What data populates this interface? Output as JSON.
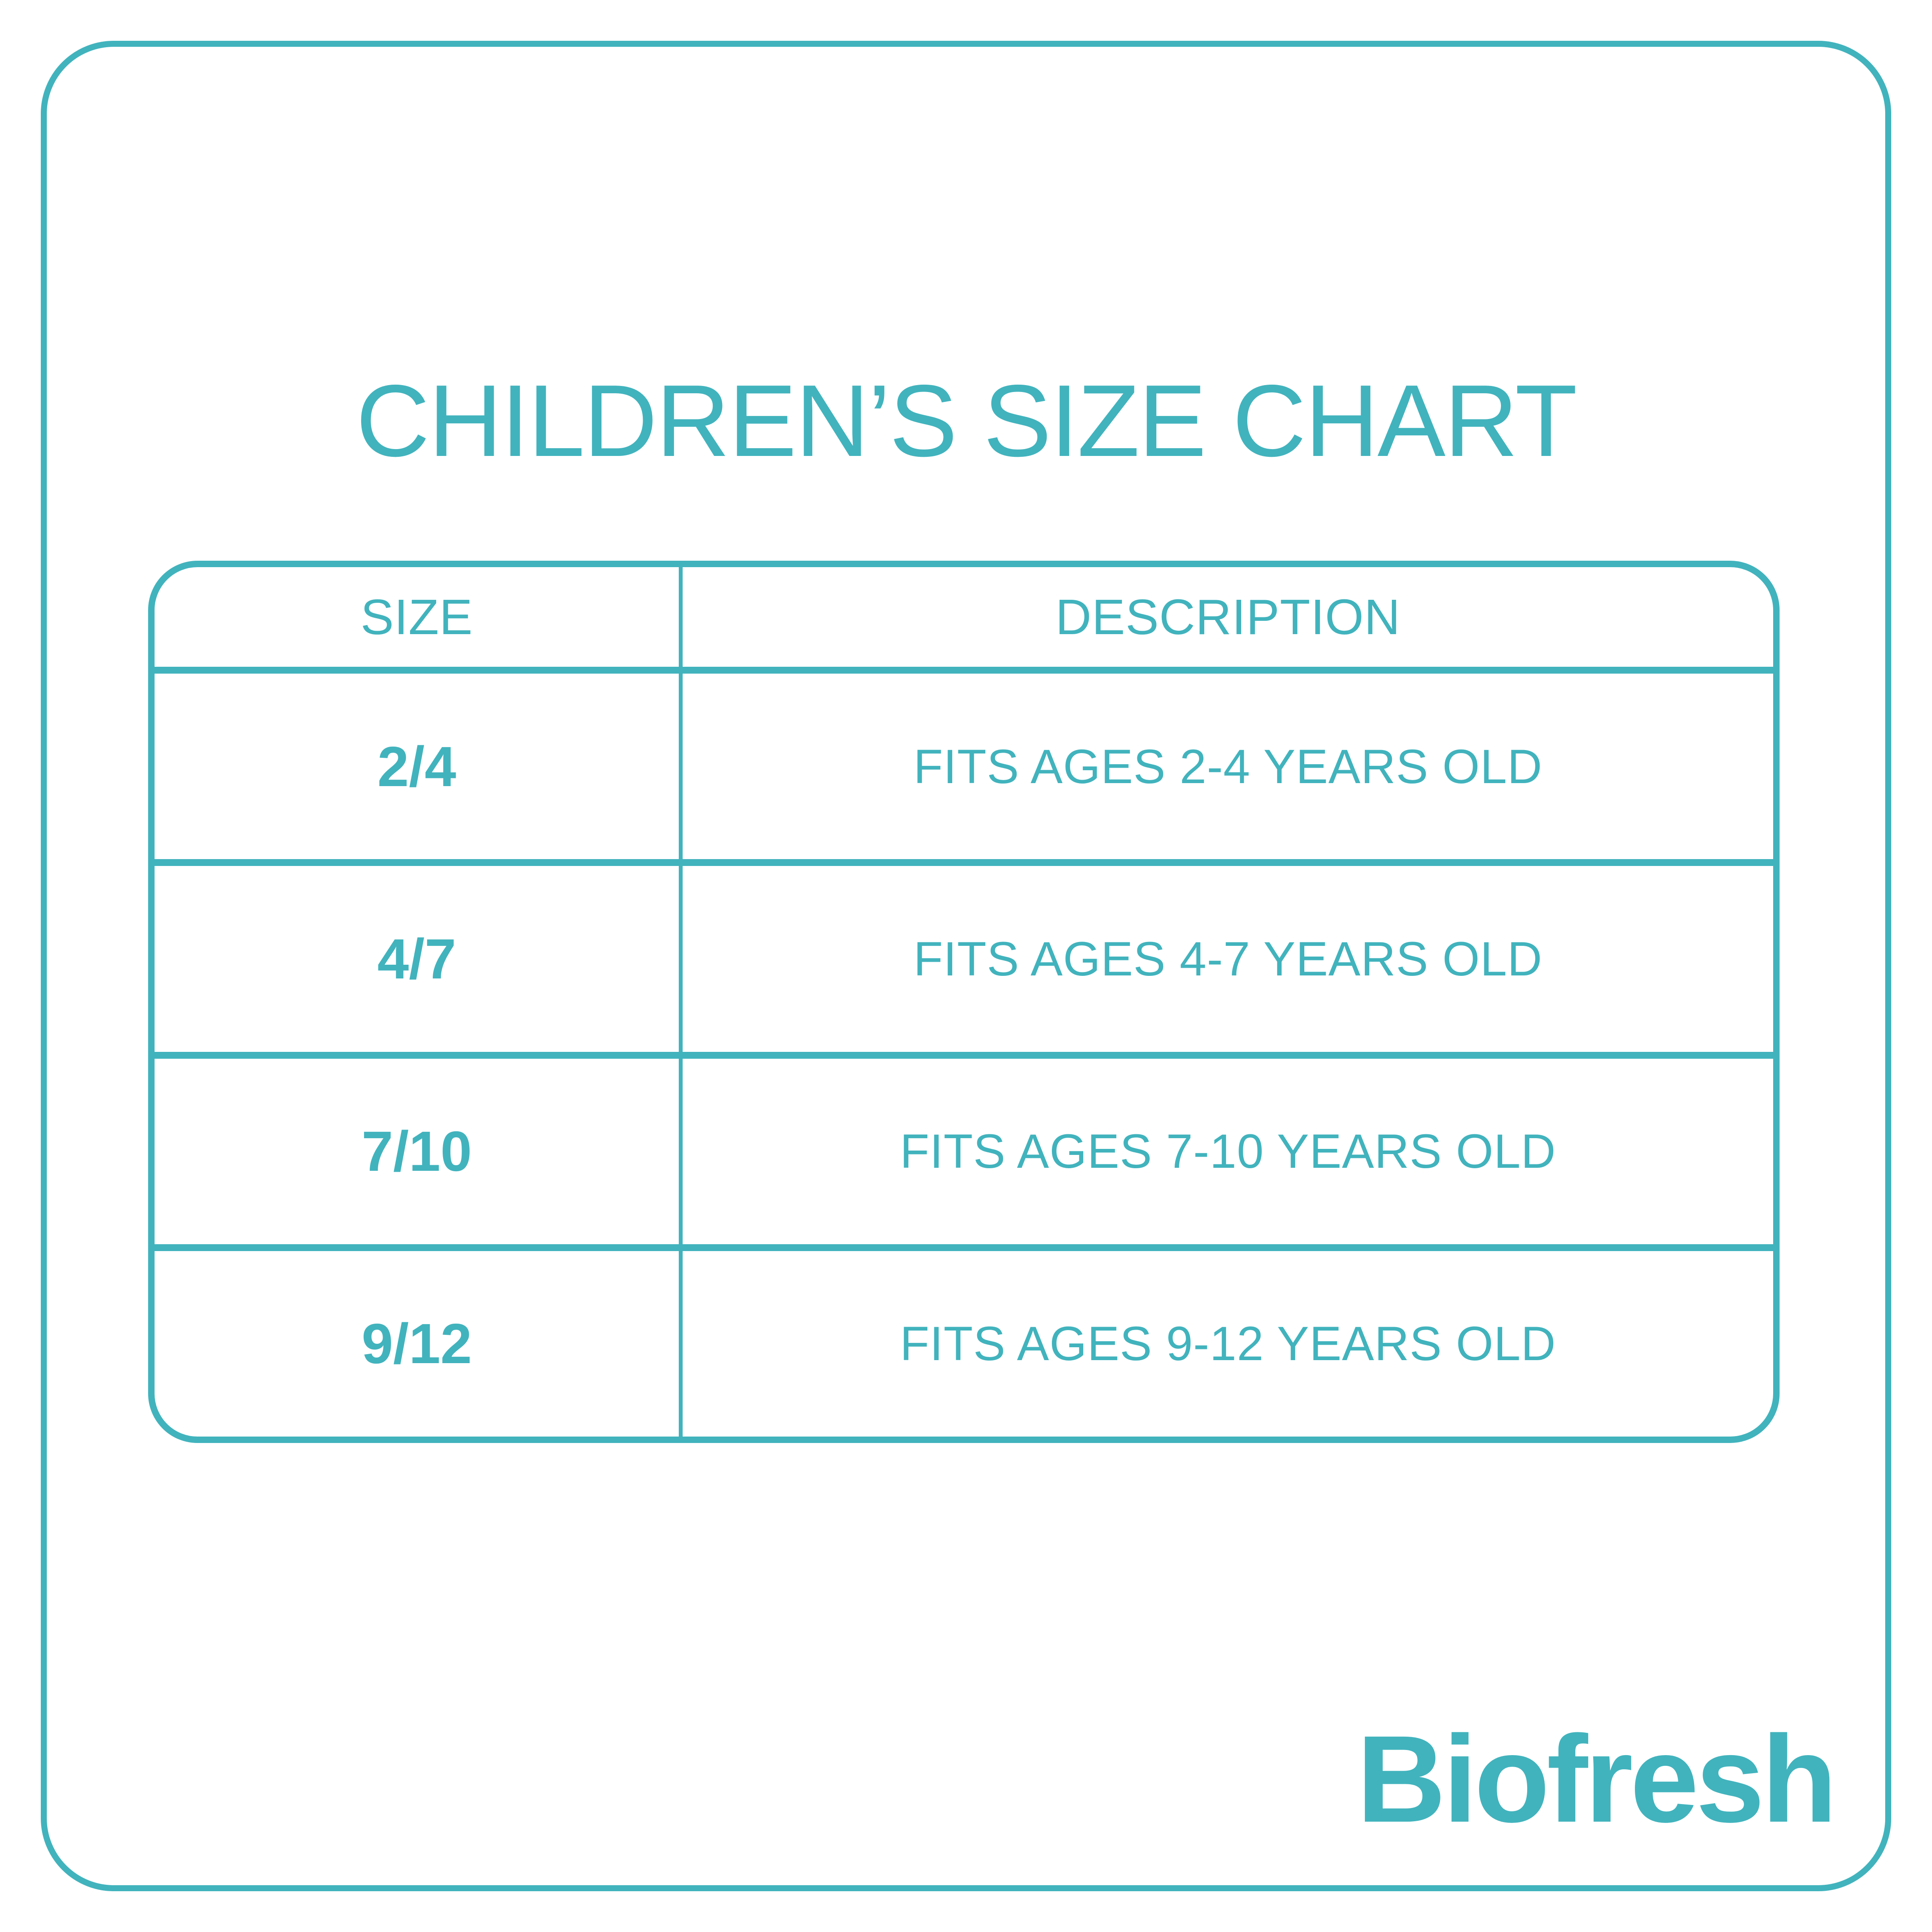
{
  "page": {
    "title": "CHILDREN’S SIZE CHART",
    "accent_color": "#41B3BD",
    "background_color": "#FFFFFF"
  },
  "table": {
    "columns": [
      "SIZE",
      "DESCRIPTION"
    ],
    "rows": [
      {
        "size": "2/4",
        "description": "FITS AGES 2-4 YEARS OLD"
      },
      {
        "size": "4/7",
        "description": "FITS AGES 4-7 YEARS OLD"
      },
      {
        "size": "7/10",
        "description": "FITS AGES 7-10 YEARS OLD"
      },
      {
        "size": "9/12",
        "description": "FITS AGES 9-12 YEARS OLD"
      }
    ]
  },
  "footer": {
    "brand": "Biofresh"
  }
}
